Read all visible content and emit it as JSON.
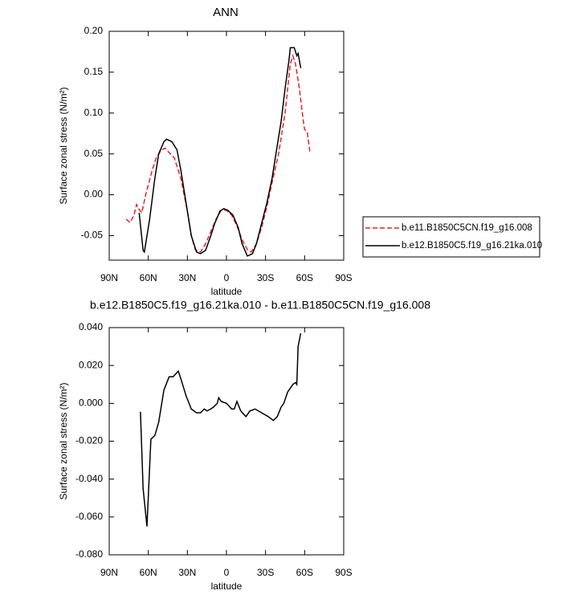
{
  "chart_data": [
    {
      "type": "line",
      "title": "ANN",
      "xlabel": "latitude",
      "ylabel": "Surface zonal stress (N/m²)",
      "xlim": [
        90,
        -90
      ],
      "xticks": [
        {
          "value": 90,
          "label": "90N"
        },
        {
          "value": 60,
          "label": "60N"
        },
        {
          "value": 30,
          "label": "30N"
        },
        0,
        {
          "value": -30,
          "label": "30S"
        },
        {
          "value": -60,
          "label": "60S"
        },
        {
          "value": -90,
          "label": "90S"
        }
      ],
      "ylim": [
        -0.08,
        0.2
      ],
      "yticks": [
        {
          "value": 0.2,
          "label": "0.20"
        },
        0.15,
        {
          "value": 0.1,
          "label": "0.10"
        },
        0.05,
        {
          "value": 0,
          "label": "0.00"
        },
        -0.05
      ],
      "legend": "right",
      "series": [
        {
          "name": "b.e11.B1850C5CN.f19_g16.008",
          "color": "#e8202a",
          "style": "dashed",
          "x": [
            77,
            74,
            71,
            69,
            67,
            65,
            62,
            60,
            57,
            54,
            50,
            47,
            43,
            40,
            35,
            30,
            27,
            24,
            20,
            16,
            12,
            8,
            4,
            0,
            -4,
            -8,
            -12,
            -16,
            -19,
            -23,
            -27,
            -31,
            -35,
            -40,
            -45,
            -49,
            -51,
            -53,
            -56,
            -59,
            -60,
            -62,
            -64
          ],
          "values": [
            -0.03,
            -0.034,
            -0.025,
            -0.012,
            -0.018,
            -0.022,
            0.0,
            0.012,
            0.03,
            0.045,
            0.055,
            0.057,
            0.05,
            0.045,
            0.02,
            -0.02,
            -0.05,
            -0.067,
            -0.07,
            -0.06,
            -0.045,
            -0.03,
            -0.019,
            -0.019,
            -0.025,
            -0.038,
            -0.055,
            -0.067,
            -0.07,
            -0.06,
            -0.04,
            -0.015,
            0.015,
            0.05,
            0.1,
            0.16,
            0.17,
            0.16,
            0.13,
            0.09,
            0.08,
            0.077,
            0.053
          ]
        },
        {
          "name": "b.e12.B1850C5.f19_g16.21ka.010",
          "color": "#000000",
          "style": "solid",
          "x": [
            67,
            64,
            63,
            59,
            55,
            52,
            48,
            46,
            42,
            38,
            35,
            31,
            27,
            23,
            20,
            16,
            12,
            9,
            5,
            2,
            -1,
            -5,
            -9,
            -12,
            -16,
            -20,
            -23,
            -27,
            -31,
            -35,
            -38,
            -42,
            -45,
            -48,
            -49,
            -52,
            -54,
            -55,
            -57
          ],
          "values": [
            -0.022,
            -0.068,
            -0.07,
            -0.03,
            0.02,
            0.05,
            0.065,
            0.068,
            0.065,
            0.055,
            0.03,
            -0.01,
            -0.05,
            -0.07,
            -0.072,
            -0.068,
            -0.05,
            -0.035,
            -0.02,
            -0.017,
            -0.019,
            -0.025,
            -0.04,
            -0.06,
            -0.075,
            -0.072,
            -0.06,
            -0.035,
            -0.01,
            0.02,
            0.05,
            0.09,
            0.13,
            0.165,
            0.18,
            0.18,
            0.17,
            0.173,
            0.155
          ]
        }
      ]
    },
    {
      "type": "line",
      "title": "b.e12.B1850C5.f19_g16.21ka.010 - b.e11.B1850C5CN.f19_g16.008",
      "xlabel": "latitude",
      "ylabel": "Surface zonal stress (N/m²)",
      "xlim": [
        90,
        -90
      ],
      "xticks": [
        {
          "value": 90,
          "label": "90N"
        },
        {
          "value": 60,
          "label": "60N"
        },
        {
          "value": 30,
          "label": "30N"
        },
        0,
        {
          "value": -30,
          "label": "30S"
        },
        {
          "value": -60,
          "label": "60S"
        },
        {
          "value": -90,
          "label": "90S"
        }
      ],
      "ylim": [
        -0.08,
        0.04
      ],
      "yticks": [
        {
          "value": 0.04,
          "label": "0.040"
        },
        {
          "value": 0.02,
          "label": "0.020"
        },
        {
          "value": 0,
          "label": "0.000"
        },
        {
          "value": -0.02,
          "label": "-0.020"
        },
        {
          "value": -0.04,
          "label": "-0.040"
        },
        {
          "value": -0.06,
          "label": "-0.060"
        },
        {
          "value": -0.08,
          "label": "-0.080"
        }
      ],
      "series": [
        {
          "color": "#000000",
          "style": "solid",
          "x": [
            66,
            64,
            61,
            58,
            55,
            52,
            48,
            44,
            41,
            37,
            35,
            31,
            27,
            23,
            20,
            17,
            15,
            12,
            10,
            7,
            6,
            4,
            0,
            -4,
            -6,
            -8,
            -11,
            -15,
            -18,
            -22,
            -27,
            -32,
            -36,
            -39,
            -42,
            -44,
            -47,
            -51,
            -53,
            -54,
            -55,
            -57
          ],
          "values": [
            -0.0045,
            -0.045,
            -0.065,
            -0.019,
            -0.017,
            -0.01,
            0.007,
            0.014,
            0.014,
            0.017,
            0.013,
            0.004,
            -0.003,
            -0.005,
            -0.005,
            -0.003,
            -0.004,
            -0.003,
            -0.002,
            0.0,
            0.003,
            0.001,
            0.0,
            -0.003,
            -0.003,
            0.001,
            -0.004,
            -0.007,
            -0.004,
            -0.003,
            -0.005,
            -0.007,
            -0.009,
            -0.007,
            -0.002,
            0.0,
            0.006,
            0.01,
            0.011,
            0.01,
            0.03,
            0.037
          ]
        }
      ]
    }
  ]
}
